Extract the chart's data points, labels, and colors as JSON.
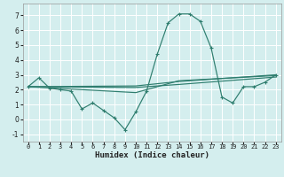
{
  "title": "",
  "xlabel": "Humidex (Indice chaleur)",
  "ylabel": "",
  "bg_color": "#d4eeee",
  "grid_color": "#ffffff",
  "line_color": "#2e7d6e",
  "xlim": [
    -0.5,
    23.5
  ],
  "ylim": [
    -1.5,
    7.8
  ],
  "xticks": [
    0,
    1,
    2,
    3,
    4,
    5,
    6,
    7,
    8,
    9,
    10,
    11,
    12,
    13,
    14,
    15,
    16,
    17,
    18,
    19,
    20,
    21,
    22,
    23
  ],
  "yticks": [
    -1,
    0,
    1,
    2,
    3,
    4,
    5,
    6,
    7
  ],
  "series1_x": [
    0,
    1,
    2,
    3,
    4,
    5,
    6,
    7,
    8,
    9,
    10,
    11,
    12,
    13,
    14,
    15,
    16,
    17,
    18,
    19,
    20,
    21,
    22,
    23
  ],
  "series1_y": [
    2.2,
    2.8,
    2.1,
    2.0,
    1.9,
    0.7,
    1.1,
    0.6,
    0.1,
    -0.7,
    0.5,
    1.9,
    4.4,
    6.5,
    7.1,
    7.1,
    6.6,
    4.8,
    1.5,
    1.1,
    2.2,
    2.2,
    2.5,
    3.0
  ],
  "series2_x": [
    0,
    10,
    14,
    23
  ],
  "series2_y": [
    2.2,
    2.25,
    2.55,
    3.0
  ],
  "series3_x": [
    0,
    10,
    14,
    23
  ],
  "series3_y": [
    2.2,
    2.15,
    2.35,
    2.85
  ],
  "series4_x": [
    0,
    10,
    14,
    23
  ],
  "series4_y": [
    2.2,
    1.8,
    2.6,
    2.95
  ],
  "tick_fontsize": 5.0,
  "xlabel_fontsize": 6.5,
  "linewidth": 0.85,
  "marker_size": 3.5
}
